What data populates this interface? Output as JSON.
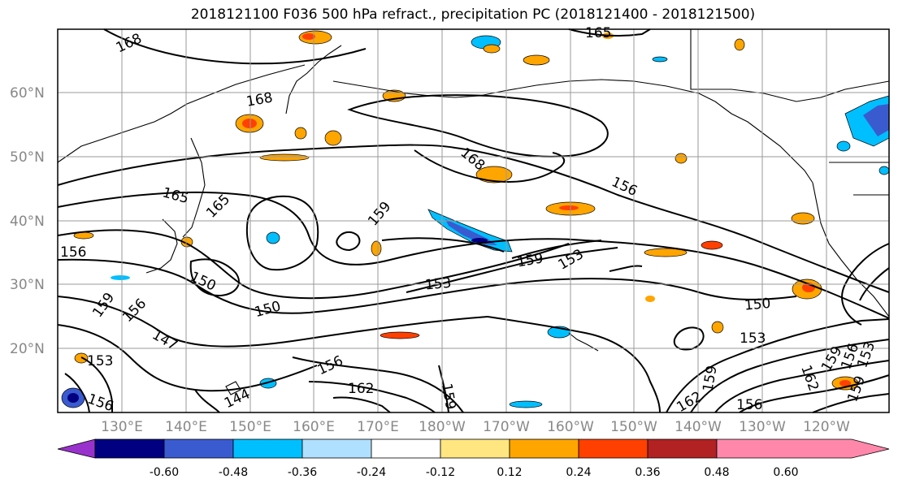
{
  "title": "2018121100 F036 500 hPa refract., precipitation PC (2018121400 - 2018121500)",
  "map": {
    "lat_labels": [
      "60°N",
      "50°N",
      "40°N",
      "30°N",
      "20°N"
    ],
    "lon_labels": [
      "130°E",
      "140°E",
      "150°E",
      "160°E",
      "170°E",
      "180°W",
      "170°W",
      "160°W",
      "150°W",
      "140°W",
      "130°W",
      "120°W"
    ],
    "contour_labels": [
      "168",
      "165",
      "168",
      "168",
      "165",
      "165",
      "159",
      "156",
      "156",
      "150",
      "150",
      "153",
      "159",
      "153",
      "159",
      "156",
      "147",
      "153",
      "150",
      "153",
      "162",
      "159",
      "156",
      "153",
      "159",
      "156",
      "159",
      "162",
      "144",
      "156",
      "162",
      "159",
      "156"
    ],
    "grid": true
  },
  "colorbar": {
    "tick_labels": [
      "-0.60",
      "-0.48",
      "-0.36",
      "-0.24",
      "-0.12",
      "0.12",
      "0.24",
      "0.36",
      "0.48",
      "0.60"
    ],
    "colors": [
      "#9932cc",
      "#000080",
      "#3a5bd0",
      "#00bfff",
      "#b0e0ff",
      "#ffffff",
      "#ffe680",
      "#ffa500",
      "#ff4000",
      "#b22222",
      "#ff88aa"
    ]
  }
}
